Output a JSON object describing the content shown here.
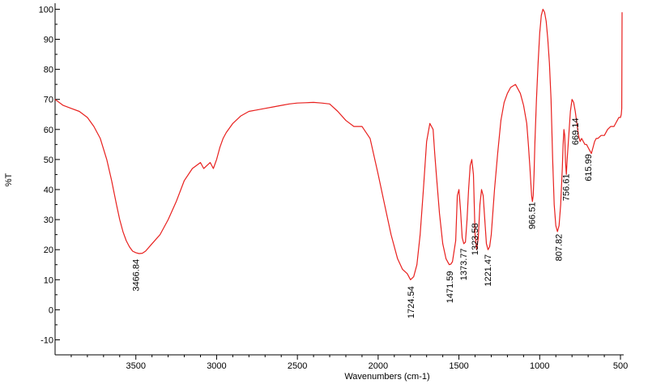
{
  "chart_data": {
    "type": "line",
    "title": "",
    "xlabel": "Wavenumbers (cm-1)",
    "ylabel": "%T",
    "xlim": [
      4000,
      480
    ],
    "ylim": [
      -15,
      102
    ],
    "x_reversed": true,
    "grid": false,
    "legend": "none",
    "line_color": "#e8201e",
    "xticks": [
      {
        "value": 3500,
        "label": "3500"
      },
      {
        "value": 3000,
        "label": "3000"
      },
      {
        "value": 2500,
        "label": "2500"
      },
      {
        "value": 2000,
        "label": "2000"
      },
      {
        "value": 1500,
        "label": "1500"
      },
      {
        "value": 1000,
        "label": "1000"
      },
      {
        "value": 500,
        "label": "500"
      }
    ],
    "yticks": [
      {
        "value": 100,
        "label": "100"
      },
      {
        "value": 90,
        "label": "90"
      },
      {
        "value": 80,
        "label": "80"
      },
      {
        "value": 70,
        "label": "70"
      },
      {
        "value": 60,
        "label": "60"
      },
      {
        "value": 50,
        "label": "50"
      },
      {
        "value": 40,
        "label": "40"
      },
      {
        "value": 30,
        "label": "30"
      },
      {
        "value": 20,
        "label": "20"
      },
      {
        "value": 10,
        "label": "10"
      },
      {
        "value": 0,
        "label": "0"
      },
      {
        "value": -10,
        "label": "-10"
      }
    ],
    "series": [
      {
        "x": [
          4000,
          3950,
          3900,
          3850,
          3800,
          3760,
          3720,
          3680,
          3650,
          3620,
          3600,
          3580,
          3560,
          3540,
          3520,
          3500,
          3480,
          3460,
          3440,
          3400,
          3350,
          3300,
          3250,
          3200,
          3150,
          3100,
          3080,
          3060,
          3040,
          3020,
          3000,
          2980,
          2960,
          2940,
          2900,
          2850,
          2800,
          2750,
          2700,
          2650,
          2600,
          2550,
          2500,
          2450,
          2400,
          2350,
          2300,
          2250,
          2200,
          2150,
          2100,
          2050,
          2000,
          1960,
          1920,
          1880,
          1850,
          1820,
          1800,
          1780,
          1760,
          1740,
          1720,
          1700,
          1680,
          1660,
          1650,
          1640,
          1620,
          1600,
          1580,
          1560,
          1550,
          1540,
          1520,
          1510,
          1500,
          1490,
          1480,
          1470,
          1460,
          1450,
          1440,
          1430,
          1420,
          1410,
          1400,
          1390,
          1380,
          1370,
          1360,
          1350,
          1340,
          1330,
          1320,
          1310,
          1300,
          1280,
          1260,
          1240,
          1220,
          1200,
          1180,
          1150,
          1120,
          1100,
          1080,
          1070,
          1060,
          1050,
          1045,
          1040,
          1035,
          1030,
          1020,
          1010,
          1000,
          990,
          980,
          970,
          960,
          950,
          940,
          930,
          920,
          910,
          900,
          890,
          880,
          870,
          860,
          855,
          850,
          845,
          840,
          835,
          830,
          820,
          810,
          800,
          790,
          780,
          770,
          760,
          750,
          740,
          730,
          720,
          710,
          700,
          690,
          680,
          670,
          660,
          650,
          640,
          620,
          600,
          580,
          560,
          540,
          530,
          520,
          510,
          500,
          495,
          492,
          490
        ],
        "y": [
          70,
          68,
          67,
          66,
          64,
          61,
          57,
          50,
          43,
          35,
          30,
          26,
          23,
          21,
          19.5,
          19,
          18.7,
          18.8,
          19.5,
          22,
          25,
          30,
          36,
          43,
          47,
          49,
          47,
          48,
          49,
          47,
          50,
          54,
          57,
          59,
          62,
          64.5,
          66,
          66.5,
          67,
          67.5,
          68,
          68.5,
          68.8,
          68.9,
          69,
          68.8,
          68.5,
          66,
          63,
          61,
          61,
          57,
          45,
          35,
          25,
          17,
          13.5,
          12,
          10,
          11,
          15,
          25,
          40,
          56,
          62,
          60,
          52,
          45,
          32,
          22,
          17,
          15,
          15.2,
          16,
          23,
          38,
          40,
          33,
          24,
          22,
          22.5,
          30,
          40,
          48,
          50,
          45,
          25,
          20,
          24,
          35,
          40,
          38,
          30,
          22,
          20,
          21,
          25,
          40,
          52,
          63,
          69,
          72,
          74,
          75,
          72,
          68,
          62,
          55,
          47,
          38,
          36,
          38,
          45,
          55,
          70,
          82,
          92,
          98,
          100,
          99,
          96,
          90,
          82,
          70,
          50,
          35,
          28,
          26,
          28,
          35,
          47,
          55,
          60,
          58,
          49,
          45,
          50,
          58,
          66,
          70,
          69,
          66,
          62,
          58,
          56,
          57,
          56,
          55,
          55,
          54,
          53,
          52,
          54,
          56,
          57,
          57,
          58,
          58,
          60,
          61,
          61,
          62,
          63,
          64,
          64,
          65,
          67,
          99
        ]
      }
    ],
    "annotations": [
      {
        "label": "3466.84",
        "x": 3500
      },
      {
        "label": "1724.54",
        "x": 1800
      },
      {
        "label": "1471.59",
        "x": 1557
      },
      {
        "label": "1373.77",
        "x": 1473
      },
      {
        "label": "1323.58",
        "x": 1403
      },
      {
        "label": "1221.47",
        "x": 1323
      },
      {
        "label": "966.51",
        "x": 1050
      },
      {
        "label": "807.82",
        "x": 883
      },
      {
        "label": "756.61",
        "x": 838
      },
      {
        "label": "669.14",
        "x": 780
      },
      {
        "label": "615.99",
        "x": 700
      }
    ]
  }
}
